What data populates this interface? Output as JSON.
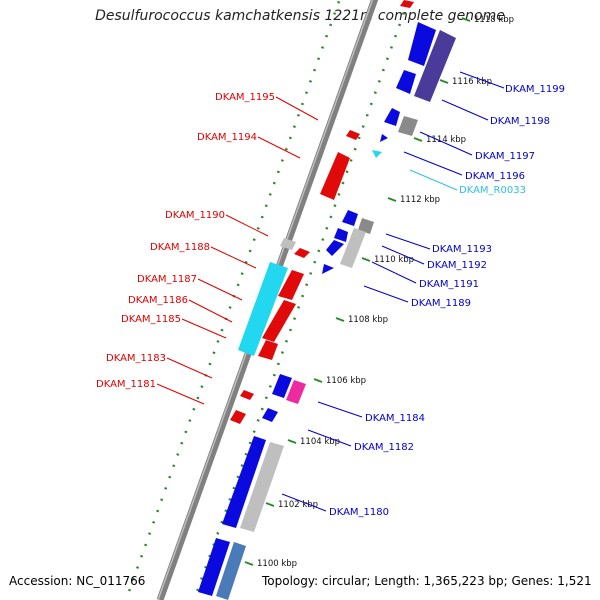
{
  "title": "Desulfurococcus kamchatkensis 1221n, complete genome",
  "accession": "Accession: NC_011766",
  "summary": "Topology: circular; Length: 1,365,223 bp; Genes: 1,521",
  "colors": {
    "forward_cds": "#0a0adf",
    "reverse_cds": "#e00a0a",
    "other_cds": "#bfbfbf",
    "rna": "#22d8f0",
    "pink": "#ee2aa0",
    "dark_cds": "#4a3a9a",
    "forward_label": "#0000cc",
    "reverse_label": "#e00000",
    "rna_label": "#30c0e0",
    "backbone": "#808080",
    "tick": "#2a8a2a"
  },
  "ticks": [
    {
      "label": "1100 kbp"
    },
    {
      "label": "1102 kbp"
    },
    {
      "label": "1104 kbp"
    },
    {
      "label": "1106 kbp"
    },
    {
      "label": "1108 kbp"
    },
    {
      "label": "1110 kbp"
    },
    {
      "label": "1112 kbp"
    },
    {
      "label": "1114 kbp"
    },
    {
      "label": "1116 kbp"
    },
    {
      "label": "1118 kbp"
    }
  ],
  "genes_left": [
    {
      "label": "DKAM_1195"
    },
    {
      "label": "DKAM_1194"
    },
    {
      "label": "DKAM_1190"
    },
    {
      "label": "DKAM_1188"
    },
    {
      "label": "DKAM_1187"
    },
    {
      "label": "DKAM_1186"
    },
    {
      "label": "DKAM_1185"
    },
    {
      "label": "DKAM_1183"
    },
    {
      "label": "DKAM_1181"
    }
  ],
  "genes_right": [
    {
      "label": "DKAM_1199"
    },
    {
      "label": "DKAM_1198"
    },
    {
      "label": "DKAM_1197"
    },
    {
      "label": "DKAM_1196"
    },
    {
      "label": "DKAM_R0033"
    },
    {
      "label": "DKAM_1193"
    },
    {
      "label": "DKAM_1192"
    },
    {
      "label": "DKAM_1191"
    },
    {
      "label": "DKAM_1189"
    },
    {
      "label": "DKAM_1184"
    },
    {
      "label": "DKAM_1182"
    },
    {
      "label": "DKAM_1180"
    }
  ]
}
